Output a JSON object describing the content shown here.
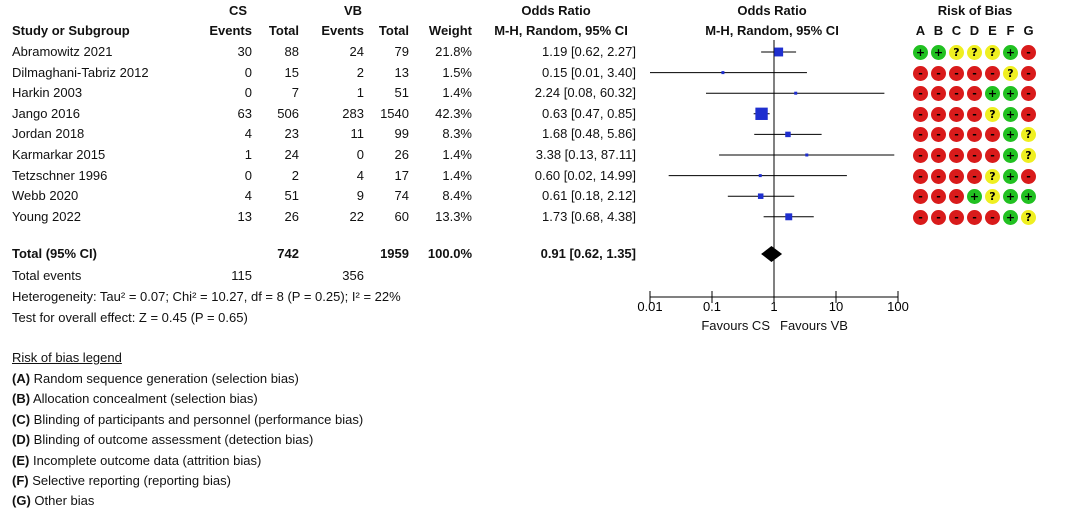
{
  "header": {
    "group1": "CS",
    "group2": "VB",
    "study": "Study or Subgroup",
    "events1": "Events",
    "total1": "Total",
    "events2": "Events",
    "total2": "Total",
    "weight": "Weight",
    "or_title": "Odds Ratio",
    "or_sub": "M-H, Random, 95% CI",
    "plot_title": "Odds Ratio",
    "plot_sub": "M-H, Random, 95% CI",
    "rob_title": "Risk of Bias",
    "rob_letters": [
      "A",
      "B",
      "C",
      "D",
      "E",
      "F",
      "G"
    ]
  },
  "studies": [
    {
      "name": "Abramowitz 2021",
      "e1": "30",
      "t1": "88",
      "e2": "24",
      "t2": "79",
      "weight": "21.8%",
      "ci": "1.19 [0.62, 2.27]",
      "rob": [
        "+",
        "+",
        "?",
        "?",
        "?",
        "+",
        "-"
      ]
    },
    {
      "name": "Dilmaghani-Tabriz 2012",
      "e1": "0",
      "t1": "15",
      "e2": "2",
      "t2": "13",
      "weight": "1.5%",
      "ci": "0.15 [0.01, 3.40]",
      "rob": [
        "-",
        "-",
        "-",
        "-",
        "-",
        "?",
        "-"
      ]
    },
    {
      "name": "Harkin 2003",
      "e1": "0",
      "t1": "7",
      "e2": "1",
      "t2": "51",
      "weight": "1.4%",
      "ci": "2.24 [0.08, 60.32]",
      "rob": [
        "-",
        "-",
        "-",
        "-",
        "+",
        "+",
        "-"
      ]
    },
    {
      "name": "Jango 2016",
      "e1": "63",
      "t1": "506",
      "e2": "283",
      "t2": "1540",
      "weight": "42.3%",
      "ci": "0.63 [0.47, 0.85]",
      "rob": [
        "-",
        "-",
        "-",
        "-",
        "?",
        "+",
        "-"
      ]
    },
    {
      "name": "Jordan 2018",
      "e1": "4",
      "t1": "23",
      "e2": "11",
      "t2": "99",
      "weight": "8.3%",
      "ci": "1.68 [0.48, 5.86]",
      "rob": [
        "-",
        "-",
        "-",
        "-",
        "-",
        "+",
        "?"
      ]
    },
    {
      "name": "Karmarkar 2015",
      "e1": "1",
      "t1": "24",
      "e2": "0",
      "t2": "26",
      "weight": "1.4%",
      "ci": "3.38 [0.13, 87.11]",
      "rob": [
        "-",
        "-",
        "-",
        "-",
        "-",
        "+",
        "?"
      ]
    },
    {
      "name": "Tetzschner 1996",
      "e1": "0",
      "t1": "2",
      "e2": "4",
      "t2": "17",
      "weight": "1.4%",
      "ci": "0.60 [0.02, 14.99]",
      "rob": [
        "-",
        "-",
        "-",
        "-",
        "?",
        "+",
        "-"
      ]
    },
    {
      "name": "Webb 2020",
      "e1": "4",
      "t1": "51",
      "e2": "9",
      "t2": "74",
      "weight": "8.4%",
      "ci": "0.61 [0.18, 2.12]",
      "rob": [
        "-",
        "-",
        "-",
        "+",
        "?",
        "+",
        "+"
      ]
    },
    {
      "name": "Young 2022",
      "e1": "13",
      "t1": "26",
      "e2": "22",
      "t2": "60",
      "weight": "13.3%",
      "ci": "1.73 [0.68, 4.38]",
      "rob": [
        "-",
        "-",
        "-",
        "-",
        "-",
        "+",
        "?"
      ]
    }
  ],
  "total": {
    "label": "Total (95% CI)",
    "t1": "742",
    "t2": "1959",
    "weight": "100.0%",
    "ci": "0.91 [0.62, 1.35]"
  },
  "total_events": {
    "label": "Total events",
    "e1": "115",
    "e2": "356"
  },
  "heterogeneity": "Heterogeneity: Tau² = 0.07; Chi² = 10.27, df = 8 (P = 0.25); I² = 22%",
  "overall_effect": "Test for overall effect: Z = 0.45 (P = 0.65)",
  "axis": {
    "favours_left": "Favours CS",
    "favours_right": "Favours VB"
  },
  "legend": {
    "title": "Risk of bias legend",
    "items": [
      {
        "key": "(A)",
        "text": " Random sequence generation (selection bias)"
      },
      {
        "key": "(B)",
        "text": " Allocation concealment (selection bias)"
      },
      {
        "key": "(C)",
        "text": " Blinding of participants and personnel (performance bias)"
      },
      {
        "key": "(D)",
        "text": " Blinding of outcome assessment (detection bias)"
      },
      {
        "key": "(E)",
        "text": " Incomplete outcome data (attrition bias)"
      },
      {
        "key": "(F)",
        "text": " Selective reporting (reporting bias)"
      },
      {
        "key": "(G)",
        "text": " Other bias"
      }
    ]
  },
  "colors": {
    "low": "#21c121",
    "high": "#d91b1b",
    "unclear": "#efef21",
    "marker": "#1f2fcf",
    "diamond": "#000000"
  },
  "chart_data": {
    "type": "scatter",
    "title": "Odds Ratio",
    "xlabel": "M-H, Random, 95% CI",
    "xscale": "log",
    "xlim": [
      0.01,
      100
    ],
    "xticks": [
      "0.01",
      "0.1",
      "1",
      "10",
      "100"
    ],
    "reference_line": 1,
    "series": [
      {
        "name": "Abramowitz 2021",
        "or": 1.19,
        "lo": 0.62,
        "hi": 2.27,
        "weight": 21.8
      },
      {
        "name": "Dilmaghani-Tabriz 2012",
        "or": 0.15,
        "lo": 0.01,
        "hi": 3.4,
        "weight": 1.5
      },
      {
        "name": "Harkin 2003",
        "or": 2.24,
        "lo": 0.08,
        "hi": 60.32,
        "weight": 1.4
      },
      {
        "name": "Jango 2016",
        "or": 0.63,
        "lo": 0.47,
        "hi": 0.85,
        "weight": 42.3
      },
      {
        "name": "Jordan 2018",
        "or": 1.68,
        "lo": 0.48,
        "hi": 5.86,
        "weight": 8.3
      },
      {
        "name": "Karmarkar 2015",
        "or": 3.38,
        "lo": 0.13,
        "hi": 87.11,
        "weight": 1.4
      },
      {
        "name": "Tetzschner 1996",
        "or": 0.6,
        "lo": 0.02,
        "hi": 14.99,
        "weight": 1.4
      },
      {
        "name": "Webb 2020",
        "or": 0.61,
        "lo": 0.18,
        "hi": 2.12,
        "weight": 8.4
      },
      {
        "name": "Young 2022",
        "or": 1.73,
        "lo": 0.68,
        "hi": 4.38,
        "weight": 13.3
      }
    ],
    "pooled": {
      "name": "Total (95% CI)",
      "or": 0.91,
      "lo": 0.62,
      "hi": 1.35
    }
  }
}
